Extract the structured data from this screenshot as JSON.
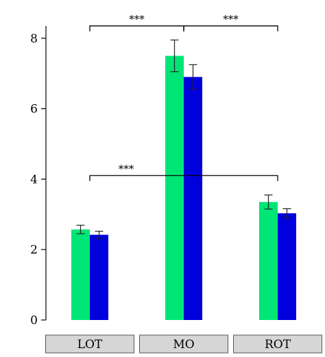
{
  "chart_data": {
    "type": "bar",
    "categories": [
      "LOT",
      "MO",
      "ROT"
    ],
    "series": [
      {
        "color": "#00e676",
        "values": [
          2.57,
          7.5,
          3.35
        ],
        "errors": [
          0.12,
          0.45,
          0.2
        ]
      },
      {
        "color": "#0000dd",
        "values": [
          2.42,
          6.9,
          3.03
        ],
        "errors": [
          0.1,
          0.35,
          0.13
        ]
      }
    ],
    "ylim": [
      0,
      8.4
    ],
    "yticks": [
      0,
      2,
      4,
      6,
      8
    ],
    "significance": [
      {
        "from": 0,
        "to": 1,
        "y": 8.35,
        "label": "***"
      },
      {
        "from": 1,
        "to": 2,
        "y": 8.35,
        "label": "***"
      },
      {
        "from": 0,
        "to": 2,
        "y": 4.1,
        "label": "***"
      }
    ],
    "grid": false,
    "title": "",
    "xlabel": "",
    "ylabel": ""
  }
}
